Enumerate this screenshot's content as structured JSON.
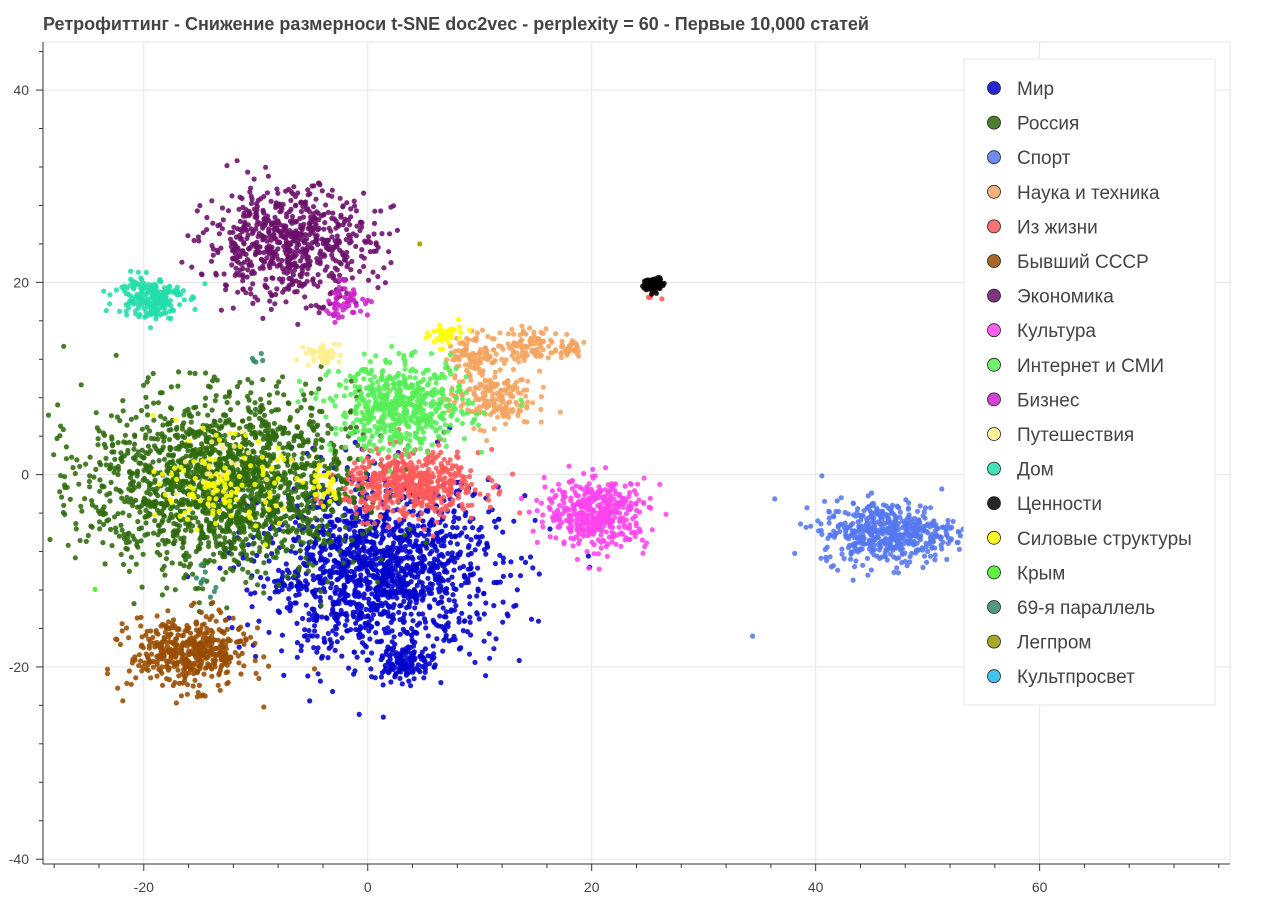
{
  "chart_data": {
    "type": "scatter",
    "title": "Ретрофиттинг - Снижение размерноси t-SNE doc2vec - perplexity = 60 - Первые 10,000 статей",
    "xlabel": "",
    "ylabel": "",
    "xlim": [
      -29,
      77
    ],
    "ylim": [
      -40.5,
      45
    ],
    "x_ticks": [
      -20,
      0,
      20,
      40,
      60
    ],
    "y_ticks": [
      -40,
      -20,
      0,
      20,
      40
    ],
    "x_tick_labels": [
      "-20",
      "0",
      "20",
      "40",
      "60"
    ],
    "y_tick_labels": [
      "-40",
      "-20",
      "0",
      "20",
      "40"
    ],
    "grid": true,
    "legend_position": "top-right",
    "series": [
      {
        "name": "Мир",
        "color": "#0000cc",
        "clusters": [
          {
            "cx": 1,
            "cy": -10,
            "sx": 7,
            "sy": 6,
            "n": 1500
          },
          {
            "cx": 3.5,
            "cy": -19.5,
            "sx": 1.5,
            "sy": 1.2,
            "n": 120
          }
        ]
      },
      {
        "name": "Россия",
        "color": "#2d6a0a",
        "clusters": [
          {
            "cx": -13,
            "cy": -1,
            "sx": 8,
            "sy": 6,
            "n": 1800
          }
        ]
      },
      {
        "name": "Спорт",
        "color": "#5577ee",
        "clusters": [
          {
            "cx": 46.5,
            "cy": -6,
            "sx": 4,
            "sy": 2.2,
            "n": 500
          },
          {
            "cx": 34.2,
            "cy": -16.6,
            "sx": 0.1,
            "sy": 0.1,
            "n": 1
          }
        ]
      },
      {
        "name": "Наука и техника",
        "color": "#f4a460",
        "clusters": [
          {
            "cx": 11,
            "cy": 8,
            "sx": 2.5,
            "sy": 2,
            "n": 180
          },
          {
            "cx": 9.5,
            "cy": 12.5,
            "sx": 1.5,
            "sy": 1.5,
            "n": 100
          },
          {
            "cx": 14.5,
            "cy": 13.5,
            "sx": 1.8,
            "sy": 1.2,
            "n": 90
          },
          {
            "cx": 18,
            "cy": 13.3,
            "sx": 0.7,
            "sy": 0.7,
            "n": 30
          }
        ]
      },
      {
        "name": "Из жизни",
        "color": "#ff5a5a",
        "clusters": [
          {
            "cx": 4,
            "cy": -1,
            "sx": 4,
            "sy": 2.3,
            "n": 500
          },
          {
            "cx": 25.5,
            "cy": 18.5,
            "sx": 0.5,
            "sy": 0.5,
            "n": 5
          }
        ]
      },
      {
        "name": "Бывший СССР",
        "color": "#994c00",
        "clusters": [
          {
            "cx": -16,
            "cy": -18.5,
            "sx": 3.5,
            "sy": 2.5,
            "n": 450
          }
        ]
      },
      {
        "name": "Экономика",
        "color": "#6b0f6b",
        "clusters": [
          {
            "cx": -7,
            "cy": 24,
            "sx": 5,
            "sy": 3.8,
            "n": 700
          }
        ]
      },
      {
        "name": "Культура",
        "color": "#ff44ee",
        "clusters": [
          {
            "cx": 20.5,
            "cy": -4,
            "sx": 3,
            "sy": 2.3,
            "n": 450
          }
        ]
      },
      {
        "name": "Интернет и СМИ",
        "color": "#55ee55",
        "clusters": [
          {
            "cx": 3,
            "cy": 7,
            "sx": 4,
            "sy": 3,
            "n": 550
          }
        ]
      },
      {
        "name": "Бизнес",
        "color": "#cc22cc",
        "clusters": [
          {
            "cx": -2,
            "cy": 18,
            "sx": 1.5,
            "sy": 1.2,
            "n": 50
          }
        ]
      },
      {
        "name": "Путешествия",
        "color": "#ffee88",
        "clusters": [
          {
            "cx": -4,
            "cy": 12.5,
            "sx": 1,
            "sy": 0.8,
            "n": 40
          },
          {
            "cx": -14,
            "cy": 1,
            "sx": 3,
            "sy": 2,
            "n": 20
          }
        ]
      },
      {
        "name": "Дом",
        "color": "#22ddaa",
        "clusters": [
          {
            "cx": -19.5,
            "cy": 18.5,
            "sx": 2,
            "sy": 1.5,
            "n": 200
          }
        ]
      },
      {
        "name": "Ценности",
        "color": "#000000",
        "clusters": [
          {
            "cx": 25.5,
            "cy": 19.8,
            "sx": 0.6,
            "sy": 0.5,
            "n": 80
          }
        ]
      },
      {
        "name": "Силовые структуры",
        "color": "#ffff00",
        "clusters": [
          {
            "cx": -13,
            "cy": -1,
            "sx": 3.5,
            "sy": 3,
            "n": 120
          },
          {
            "cx": 7,
            "cy": 14.5,
            "sx": 1,
            "sy": 0.8,
            "n": 45
          },
          {
            "cx": -4,
            "cy": -1,
            "sx": 1,
            "sy": 1.5,
            "n": 30
          }
        ]
      },
      {
        "name": "Крым",
        "color": "#44ee22",
        "clusters": [
          {
            "cx": -24.5,
            "cy": -12,
            "sx": 0.1,
            "sy": 0.1,
            "n": 1
          }
        ]
      },
      {
        "name": "69-я параллель",
        "color": "#338866",
        "clusters": [
          {
            "cx": -10,
            "cy": 12,
            "sx": 0.5,
            "sy": 0.5,
            "n": 5
          },
          {
            "cx": -15,
            "cy": -11,
            "sx": 1.5,
            "sy": 1,
            "n": 10
          }
        ]
      },
      {
        "name": "Легпром",
        "color": "#999900",
        "clusters": [
          {
            "cx": 4.6,
            "cy": 24,
            "sx": 0.1,
            "sy": 0.1,
            "n": 1
          }
        ]
      },
      {
        "name": "Культпросвет",
        "color": "#22bbee",
        "clusters": []
      }
    ]
  }
}
